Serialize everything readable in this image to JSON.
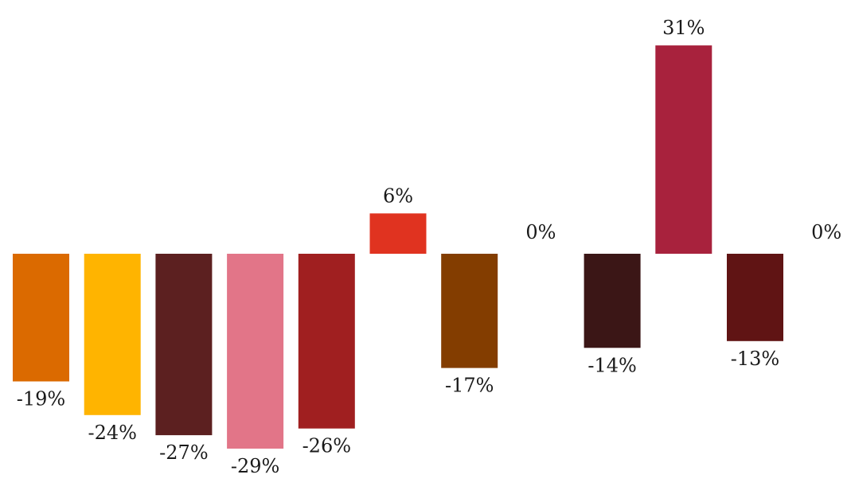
{
  "chart_data": {
    "type": "bar",
    "categories": [
      "",
      "",
      "",
      "",
      "",
      "",
      "",
      "",
      "",
      "",
      "",
      ""
    ],
    "values": [
      -19,
      -24,
      -27,
      -29,
      -26,
      6,
      -17,
      0,
      -14,
      31,
      -13,
      0
    ],
    "labels": [
      "-19%",
      "-24%",
      "-27%",
      "-29%",
      "-26%",
      "6%",
      "-17%",
      "0%",
      "-14%",
      "31%",
      "-13%",
      "0%"
    ],
    "colors": [
      "#db6a00",
      "#ffb400",
      "#5c2020",
      "#e27588",
      "#a01f20",
      "#e03320",
      "#833d00",
      "#cccccc",
      "#3b1616",
      "#a8223d",
      "#601414",
      "#cccccc"
    ],
    "title": "",
    "xlabel": "",
    "ylabel": "",
    "ylim": [
      -29,
      31
    ],
    "unit": "%",
    "grid": false,
    "legend": "none"
  }
}
